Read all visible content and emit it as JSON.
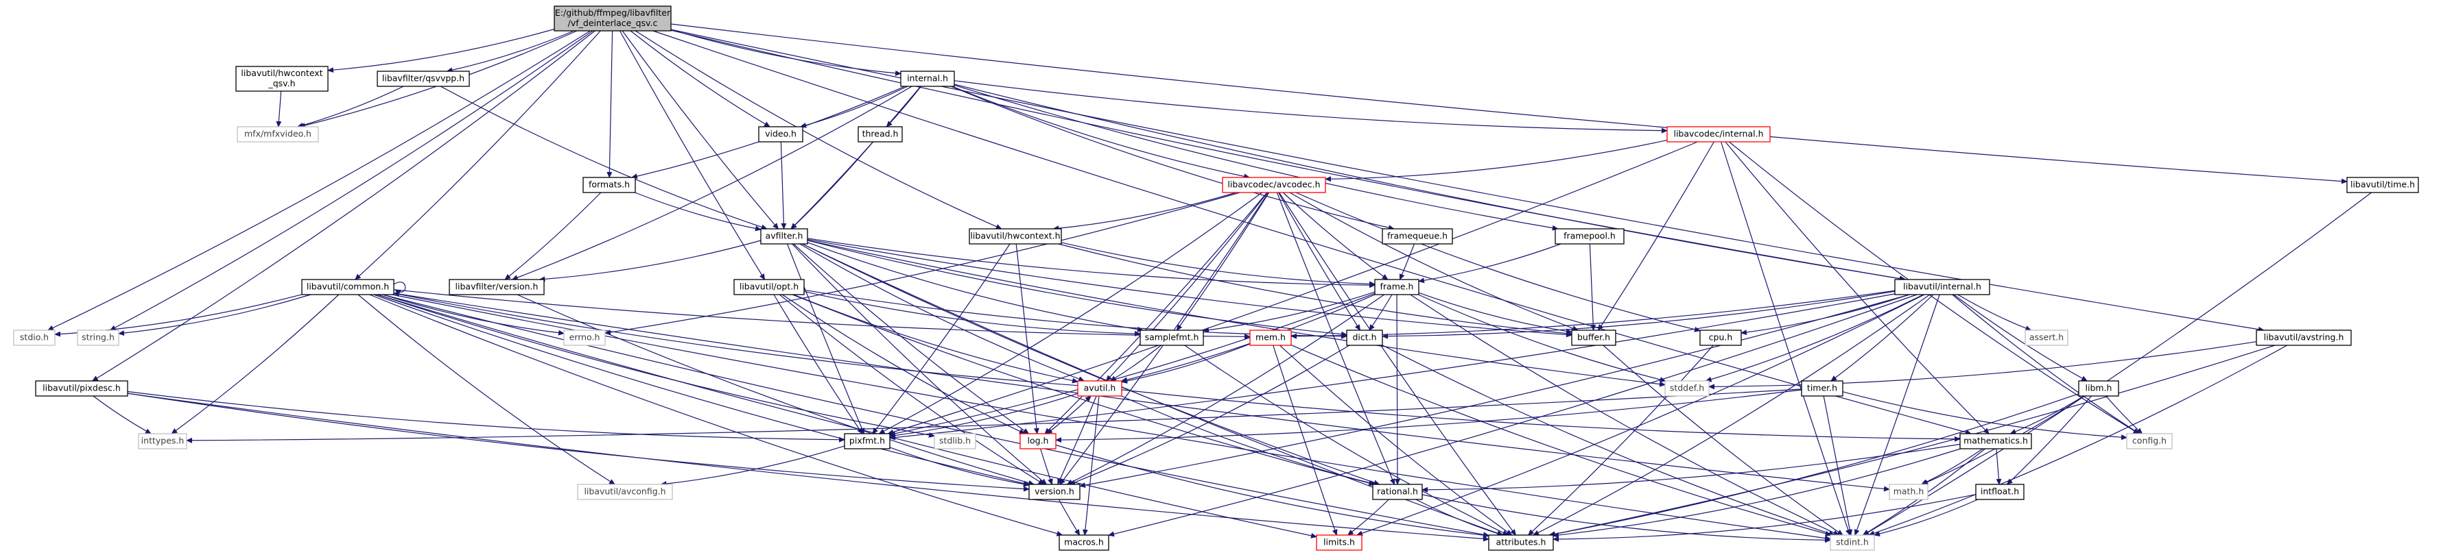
{
  "colors": {
    "edge": "#191970",
    "root_fill": "#bfbfbf",
    "node_border": "#000000",
    "highlight_border": "#ff0000",
    "external_border": "#bfbfbf",
    "text": "#000000",
    "external_text": "#404040"
  },
  "nodes": {
    "root": {
      "lines": [
        "E:/github/ffmpeg/libavfilter",
        "/vf_deinterlace_qsv.c"
      ]
    },
    "hwctx_qsv": {
      "lines": [
        "libavutil/hwcontext",
        "_qsv.h"
      ]
    },
    "qsvvpp": {
      "lines": [
        "libavfilter/qsvvpp.h"
      ]
    },
    "mfxvideo": {
      "lines": [
        "mfx/mfxvideo.h"
      ]
    },
    "internal": {
      "lines": [
        "internal.h"
      ]
    },
    "video": {
      "lines": [
        "video.h"
      ]
    },
    "thread": {
      "lines": [
        "thread.h"
      ]
    },
    "avcodec_internal": {
      "lines": [
        "libavcodec/internal.h"
      ]
    },
    "time": {
      "lines": [
        "libavutil/time.h"
      ]
    },
    "formats": {
      "lines": [
        "formats.h"
      ]
    },
    "avcodec": {
      "lines": [
        "libavcodec/avcodec.h"
      ]
    },
    "avfilter": {
      "lines": [
        "avfilter.h"
      ]
    },
    "hwcontext": {
      "lines": [
        "libavutil/hwcontext.h"
      ]
    },
    "framequeue": {
      "lines": [
        "framequeue.h"
      ]
    },
    "framepool": {
      "lines": [
        "framepool.h"
      ]
    },
    "common": {
      "lines": [
        "libavutil/common.h"
      ]
    },
    "lavfversion": {
      "lines": [
        "libavfilter/version.h"
      ]
    },
    "opt": {
      "lines": [
        "libavutil/opt.h"
      ]
    },
    "frame": {
      "lines": [
        "frame.h"
      ]
    },
    "avutil_internal": {
      "lines": [
        "libavutil/internal.h"
      ]
    },
    "stdio": {
      "lines": [
        "stdio.h"
      ]
    },
    "string": {
      "lines": [
        "string.h"
      ]
    },
    "errno": {
      "lines": [
        "errno.h"
      ]
    },
    "samplefmt": {
      "lines": [
        "samplefmt.h"
      ]
    },
    "mem": {
      "lines": [
        "mem.h"
      ]
    },
    "dict": {
      "lines": [
        "dict.h"
      ]
    },
    "buffer": {
      "lines": [
        "buffer.h"
      ]
    },
    "cpu": {
      "lines": [
        "cpu.h"
      ]
    },
    "assert": {
      "lines": [
        "assert.h"
      ]
    },
    "avstring": {
      "lines": [
        "libavutil/avstring.h"
      ]
    },
    "pixdesc": {
      "lines": [
        "libavutil/pixdesc.h"
      ]
    },
    "avutil": {
      "lines": [
        "avutil.h"
      ]
    },
    "stddef": {
      "lines": [
        "stddef.h"
      ]
    },
    "timer": {
      "lines": [
        "timer.h"
      ]
    },
    "libm": {
      "lines": [
        "libm.h"
      ]
    },
    "inttypes": {
      "lines": [
        "inttypes.h"
      ]
    },
    "pixfmt": {
      "lines": [
        "pixfmt.h"
      ]
    },
    "stdlib": {
      "lines": [
        "stdlib.h"
      ]
    },
    "log": {
      "lines": [
        "log.h"
      ]
    },
    "mathematics": {
      "lines": [
        "mathematics.h"
      ]
    },
    "config": {
      "lines": [
        "config.h"
      ]
    },
    "avconfig": {
      "lines": [
        "libavutil/avconfig.h"
      ]
    },
    "version": {
      "lines": [
        "version.h"
      ]
    },
    "rational": {
      "lines": [
        "rational.h"
      ]
    },
    "math": {
      "lines": [
        "math.h"
      ]
    },
    "intfloat": {
      "lines": [
        "intfloat.h"
      ]
    },
    "macros": {
      "lines": [
        "macros.h"
      ]
    },
    "limits": {
      "lines": [
        "limits.h"
      ]
    },
    "attributes": {
      "lines": [
        "attributes.h"
      ]
    },
    "stdint": {
      "lines": [
        "stdint.h"
      ]
    }
  }
}
